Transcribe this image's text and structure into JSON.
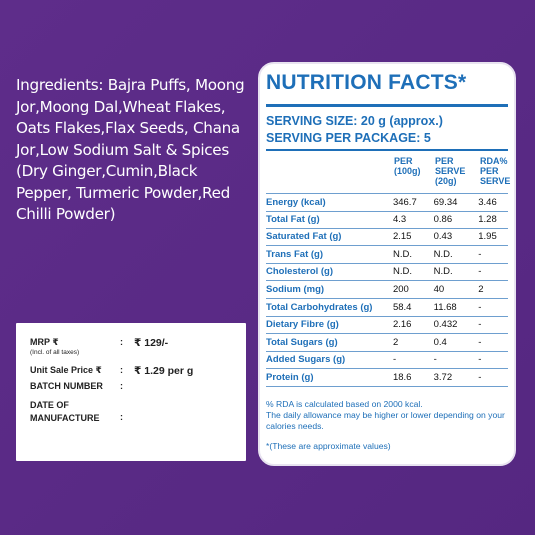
{
  "ingredients": {
    "label": "Ingredients:",
    "text": " Bajra Puffs, Moong Jor,Moong Dal,Wheat Flakes, Oats Flakes,Flax Seeds, Chana Jor,Low Sodium Salt & Spices (Dry Ginger,Cumin,Black Pepper, Turmeric Powder,Red Chilli Powder)"
  },
  "price_box": {
    "mrp_label": "MRP ₹",
    "mrp_sub": "(Incl. of all taxes)",
    "mrp_value": "₹ 129/-",
    "unit_label": "Unit Sale Price ₹",
    "unit_value": "₹ 1.29 per g",
    "batch_label": "BATCH NUMBER",
    "date_label": "DATE OF MANUFACTURE",
    "colon": ":"
  },
  "nutrition": {
    "title": "NUTRITION FACTS*",
    "serving_size": "SERVING SIZE: 20 g (approx.)",
    "serving_per_package": "SERVING PER PACKAGE: 5",
    "headers": {
      "per100": "PER (100g)",
      "perserve": "PER SERVE (20g)",
      "rda": "RDA% PER SERVE"
    },
    "rows": [
      {
        "name": "Energy (kcal)",
        "per100": "346.7",
        "perserve": "69.34",
        "rda": "3.46"
      },
      {
        "name": "Total Fat (g)",
        "per100": "4.3",
        "perserve": "0.86",
        "rda": "1.28"
      },
      {
        "name": "Saturated Fat (g)",
        "per100": "2.15",
        "perserve": "0.43",
        "rda": "1.95"
      },
      {
        "name": "Trans Fat (g)",
        "per100": "N.D.",
        "perserve": "N.D.",
        "rda": "-"
      },
      {
        "name": "Cholesterol (g)",
        "per100": "N.D.",
        "perserve": "N.D.",
        "rda": "-"
      },
      {
        "name": "Sodium (mg)",
        "per100": "200",
        "perserve": "40",
        "rda": "2"
      },
      {
        "name": "Total Carbohydrates (g)",
        "per100": "58.4",
        "perserve": "11.68",
        "rda": "-"
      },
      {
        "name": "Dietary Fibre (g)",
        "per100": "2.16",
        "perserve": "0.432",
        "rda": "-"
      },
      {
        "name": "Total Sugars (g)",
        "per100": "2",
        "perserve": "0.4",
        "rda": "-"
      },
      {
        "name": "Added Sugars (g)",
        "per100": "-",
        "perserve": "-",
        "rda": "-"
      },
      {
        "name": "Protein (g)",
        "per100": "18.6",
        "perserve": "3.72",
        "rda": "-"
      }
    ],
    "rda_note": "% RDA is calculated based on 2000 kcal.",
    "daily_note": "The daily allowance may be higher or lower depending on your calories needs.",
    "approx_note": "*(These are approximate values)"
  },
  "colors": {
    "background": "#5b2b86",
    "accent": "#1e6fb8",
    "panel": "#ffffff"
  }
}
